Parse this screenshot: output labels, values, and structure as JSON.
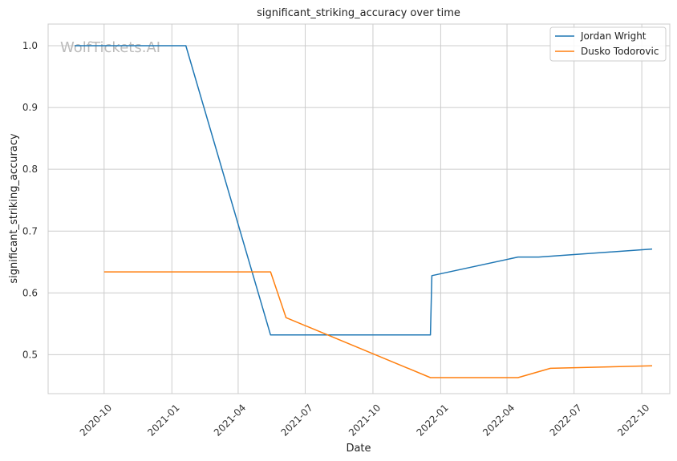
{
  "watermark": "WolfTickets.AI",
  "chart_data": {
    "type": "line",
    "title": "significant_striking_accuracy over time",
    "xlabel": "Date",
    "ylabel": "significant_striking_accuracy",
    "x_axis": "date",
    "xlim": [
      "2020-07-17",
      "2022-11-08"
    ],
    "ylim": [
      0.437,
      1.035
    ],
    "x_ticks": [
      {
        "date": "2020-10-01",
        "label": "2020-10"
      },
      {
        "date": "2021-01-01",
        "label": "2021-01"
      },
      {
        "date": "2021-04-01",
        "label": "2021-04"
      },
      {
        "date": "2021-07-01",
        "label": "2021-07"
      },
      {
        "date": "2021-10-01",
        "label": "2021-10"
      },
      {
        "date": "2022-01-01",
        "label": "2022-01"
      },
      {
        "date": "2022-04-01",
        "label": "2022-04"
      },
      {
        "date": "2022-07-01",
        "label": "2022-07"
      },
      {
        "date": "2022-10-01",
        "label": "2022-10"
      }
    ],
    "y_ticks": [
      0.5,
      0.6,
      0.7,
      0.8,
      0.9,
      1.0
    ],
    "y_tick_labels": [
      "0.5",
      "0.6",
      "0.7",
      "0.8",
      "0.9",
      "1.0"
    ],
    "grid": true,
    "legend_position": "top-right",
    "series": [
      {
        "name": "Jordan Wright",
        "color": "#1f77b4",
        "points": [
          {
            "x": "2020-08-22",
            "y": 1.0
          },
          {
            "x": "2021-01-20",
            "y": 1.0
          },
          {
            "x": "2021-05-15",
            "y": 0.532
          },
          {
            "x": "2021-12-18",
            "y": 0.532
          },
          {
            "x": "2021-12-20",
            "y": 0.628
          },
          {
            "x": "2022-04-16",
            "y": 0.658
          },
          {
            "x": "2022-05-14",
            "y": 0.658
          },
          {
            "x": "2022-10-15",
            "y": 0.671
          }
        ]
      },
      {
        "name": "Dusko Todorovic",
        "color": "#ff7f0e",
        "points": [
          {
            "x": "2020-10-01",
            "y": 0.634
          },
          {
            "x": "2021-05-15",
            "y": 0.634
          },
          {
            "x": "2021-06-05",
            "y": 0.56
          },
          {
            "x": "2021-12-18",
            "y": 0.463
          },
          {
            "x": "2022-04-16",
            "y": 0.463
          },
          {
            "x": "2022-05-30",
            "y": 0.478
          },
          {
            "x": "2022-10-15",
            "y": 0.482
          }
        ]
      }
    ]
  }
}
